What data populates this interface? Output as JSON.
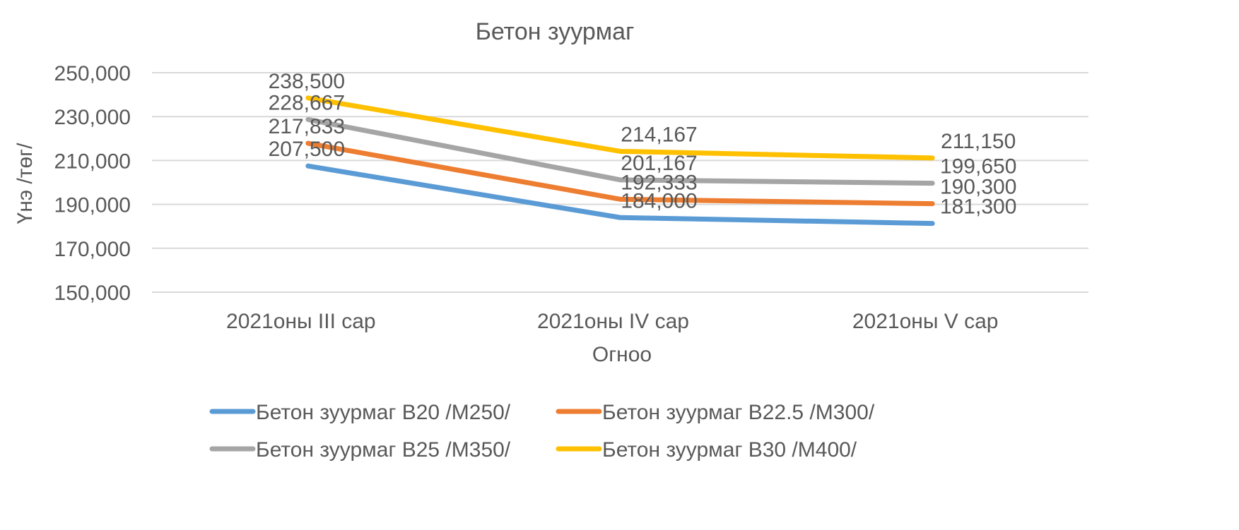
{
  "chart_data": {
    "type": "line",
    "title": "Бетон зуурмаг",
    "xlabel": "Огноо",
    "ylabel": "Үнэ /төг/",
    "categories": [
      "2021оны III сар",
      "2021оны IV сар",
      "2021оны V сар"
    ],
    "ylim": [
      150000,
      250000
    ],
    "yticks": [
      150000,
      170000,
      190000,
      210000,
      230000,
      250000
    ],
    "ytick_labels": [
      "150,000",
      "170,000",
      "190,000",
      "210,000",
      "230,000",
      "250,000"
    ],
    "grid": true,
    "legend_position": "bottom",
    "series": [
      {
        "name": "Бетон зуурмаг B20 /M250/",
        "color": "#5B9BD5",
        "values": [
          207500,
          184000,
          181300
        ],
        "labels": [
          "207,500",
          "184,000",
          "181,300"
        ]
      },
      {
        "name": "Бетон зуурмаг B22.5 /M300/",
        "color": "#ED7D31",
        "values": [
          217833,
          192333,
          190300
        ],
        "labels": [
          "217,833",
          "192,333",
          "190,300"
        ]
      },
      {
        "name": "Бетон зуурмаг B25 /M350/",
        "color": "#A5A5A5",
        "values": [
          228667,
          201167,
          199650
        ],
        "labels": [
          "228,667",
          "201,167",
          "199,650"
        ]
      },
      {
        "name": "Бетон зуурмаг B30 /M400/",
        "color": "#FFC000",
        "values": [
          238500,
          214167,
          211150
        ],
        "labels": [
          "238,500",
          "214,167",
          "211,150"
        ]
      }
    ]
  }
}
